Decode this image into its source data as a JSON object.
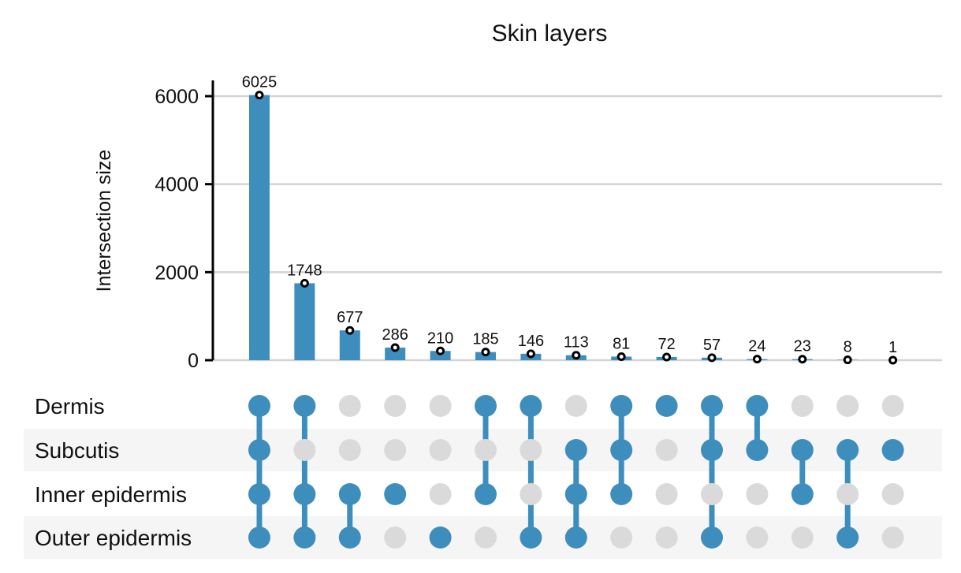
{
  "chart_data": {
    "type": "upset",
    "title": "Skin layers",
    "ylabel": "Intersection size",
    "ylim": [
      0,
      6000
    ],
    "yticks": [
      0,
      2000,
      4000,
      6000
    ],
    "sets": [
      "Dermis",
      "Subcutis",
      "Inner epidermis",
      "Outer epidermis"
    ],
    "intersections": [
      {
        "value": 6025,
        "label": "6025",
        "members": [
          "Dermis",
          "Subcutis",
          "Inner epidermis",
          "Outer epidermis"
        ]
      },
      {
        "value": 1748,
        "label": "1748",
        "members": [
          "Dermis",
          "Inner epidermis",
          "Outer epidermis"
        ]
      },
      {
        "value": 677,
        "label": "677",
        "members": [
          "Inner epidermis",
          "Outer epidermis"
        ]
      },
      {
        "value": 286,
        "label": "286",
        "members": [
          "Inner epidermis"
        ]
      },
      {
        "value": 210,
        "label": "210",
        "members": [
          "Outer epidermis"
        ]
      },
      {
        "value": 185,
        "label": "185",
        "members": [
          "Dermis",
          "Inner epidermis"
        ]
      },
      {
        "value": 146,
        "label": "146",
        "members": [
          "Dermis",
          "Outer epidermis"
        ]
      },
      {
        "value": 113,
        "label": "113",
        "members": [
          "Subcutis",
          "Inner epidermis",
          "Outer epidermis"
        ]
      },
      {
        "value": 81,
        "label": "81",
        "members": [
          "Dermis",
          "Subcutis",
          "Inner epidermis"
        ]
      },
      {
        "value": 72,
        "label": "72",
        "members": [
          "Dermis"
        ]
      },
      {
        "value": 57,
        "label": "57",
        "members": [
          "Dermis",
          "Subcutis",
          "Outer epidermis"
        ]
      },
      {
        "value": 24,
        "label": "24",
        "members": [
          "Dermis",
          "Subcutis"
        ]
      },
      {
        "value": 23,
        "label": "23",
        "members": [
          "Subcutis",
          "Inner epidermis"
        ]
      },
      {
        "value": 8,
        "label": "8",
        "members": [
          "Subcutis",
          "Outer epidermis"
        ]
      },
      {
        "value": 1,
        "label": "1",
        "members": [
          "Subcutis"
        ]
      }
    ],
    "grid": true,
    "colors": {
      "bar": "#3e8ebd",
      "dot_active": "#3e8ebd",
      "dot_inactive": "#dadada",
      "grid": "#d3d3d3",
      "row_stripe": "#f5f5f5",
      "axis": "#000000"
    }
  }
}
